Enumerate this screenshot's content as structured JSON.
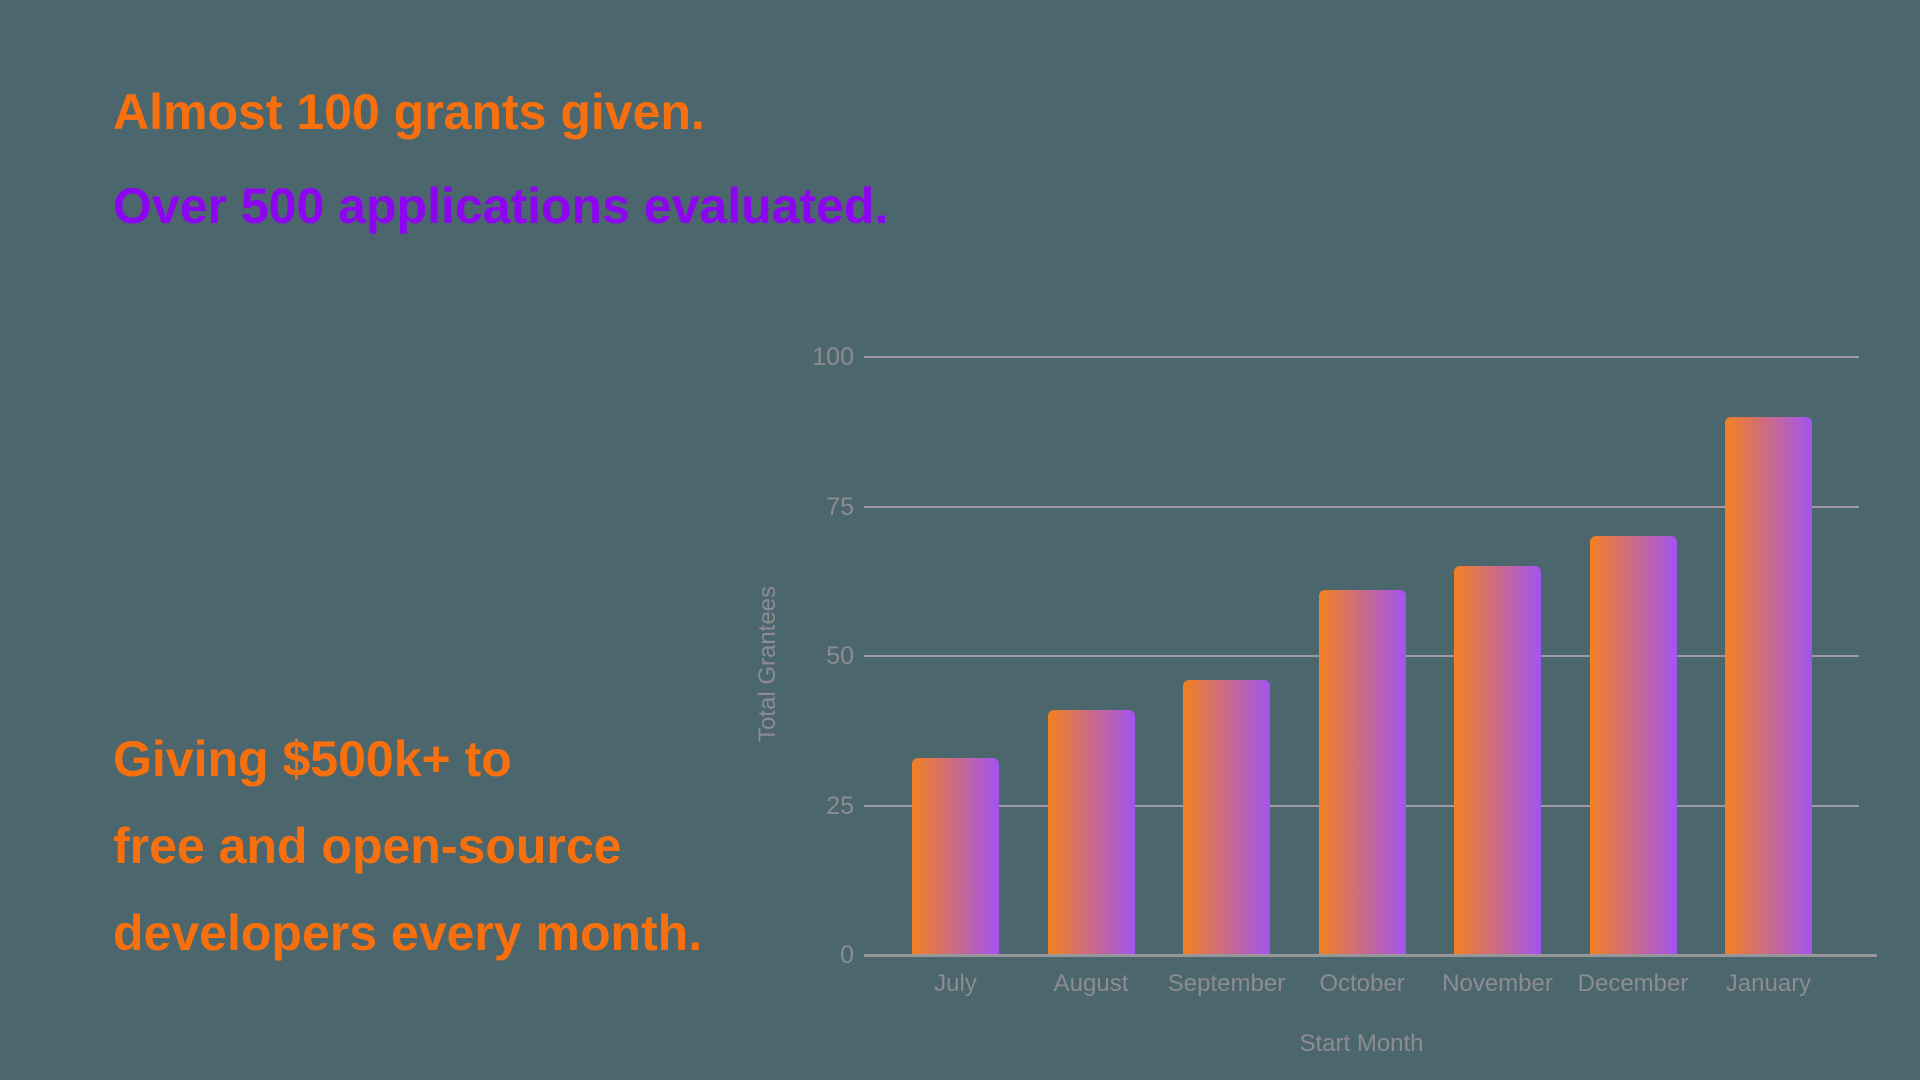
{
  "headline": {
    "line1": "Almost 100 grants given.",
    "line2": "Over 500 applications evaluated."
  },
  "subheadline": {
    "line1": "Giving $500k+ to",
    "line2": "free and open-source",
    "line3": "developers every month."
  },
  "colors": {
    "background": "#4C666E",
    "headline_orange": "#F8700D",
    "headline_purple": "#8D05F0",
    "bar_gradient_start": "#F28121",
    "bar_gradient_end": "#A254F0",
    "gridline": "#9E98A4",
    "axis_line": "#97979B",
    "axis_text": "#8C8C91"
  },
  "chart_data": {
    "type": "bar",
    "title": "",
    "categories": [
      "July",
      "August",
      "September",
      "October",
      "November",
      "December",
      "January"
    ],
    "values": [
      33,
      41,
      46,
      61,
      65,
      70,
      90
    ],
    "xlabel": "Start Month",
    "ylabel": "Total Grantees",
    "ylim": [
      0,
      100
    ],
    "yticks": [
      0,
      25,
      50,
      75,
      100
    ],
    "grid": true,
    "legend": false,
    "bar_gradient": [
      "#F28121",
      "#A254F0"
    ]
  }
}
